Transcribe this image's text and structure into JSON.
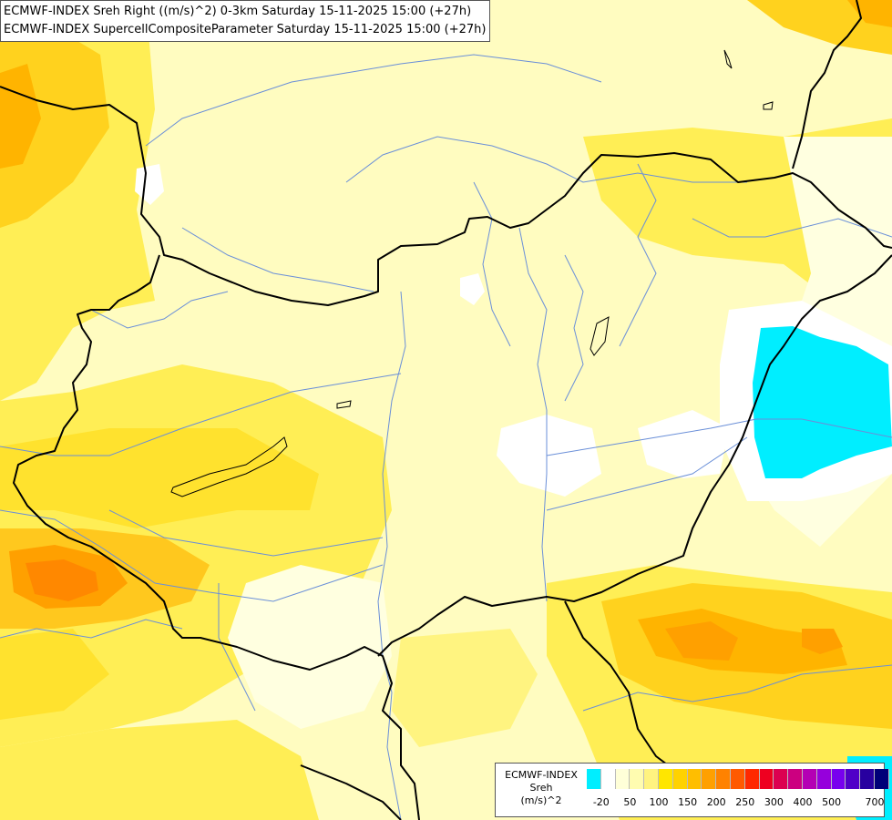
{
  "title": {
    "line1": "ECMWF-INDEX Sreh Right ((m/s)^2) 0-3km Saturday 15-11-2025 15:00 (+27h)",
    "line2": "ECMWF-INDEX SupercellCompositeParameter Saturday 15-11-2025 15:00 (+27h)"
  },
  "legend": {
    "line1": "ECMWF-INDEX",
    "line2": "Sreh",
    "line3": "(m/s)^2",
    "swatch_colors": [
      "#00eeff",
      "#ffffff",
      "#ffffd8",
      "#fffcb0",
      "#fff380",
      "#ffe600",
      "#ffd200",
      "#ffbe00",
      "#ffa000",
      "#ff8200",
      "#ff5a00",
      "#ff2800",
      "#ee0020",
      "#dc0050",
      "#cc0080",
      "#b400b4",
      "#9600dc",
      "#7800ee",
      "#5000c8",
      "#2800a0",
      "#000078"
    ],
    "tick_labels": [
      "-20",
      "50",
      "100",
      "150",
      "200",
      "250",
      "300",
      "400",
      "500",
      "700"
    ]
  }
}
